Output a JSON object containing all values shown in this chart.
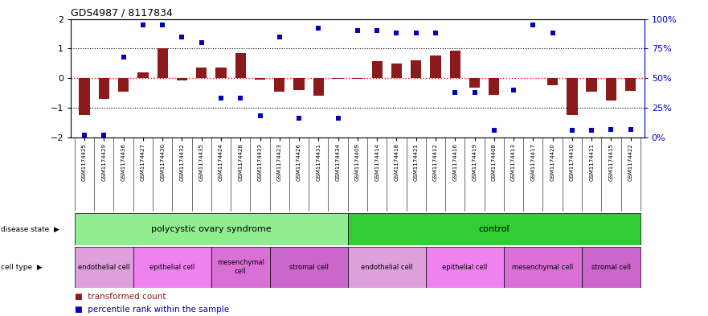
{
  "title": "GDS4987 / 8117834",
  "samples": [
    "GSM1174425",
    "GSM1174429",
    "GSM1174436",
    "GSM1174427",
    "GSM1174430",
    "GSM1174432",
    "GSM1174435",
    "GSM1174424",
    "GSM1174428",
    "GSM1174433",
    "GSM1174423",
    "GSM1174426",
    "GSM1174431",
    "GSM1174434",
    "GSM1174409",
    "GSM1174414",
    "GSM1174418",
    "GSM1174421",
    "GSM1174412",
    "GSM1174416",
    "GSM1174419",
    "GSM1174408",
    "GSM1174413",
    "GSM1174417",
    "GSM1174420",
    "GSM1174410",
    "GSM1174411",
    "GSM1174415",
    "GSM1174422"
  ],
  "bar_values": [
    -1.25,
    -0.7,
    -0.45,
    0.2,
    1.0,
    -0.08,
    0.35,
    0.35,
    0.85,
    -0.05,
    -0.45,
    -0.4,
    -0.6,
    -0.02,
    -0.02,
    0.58,
    0.5,
    0.6,
    0.78,
    0.92,
    -0.32,
    -0.55,
    0.0,
    0.02,
    -0.25,
    -1.25,
    -0.45,
    -0.75,
    -0.42
  ],
  "percentile_values": [
    2,
    2,
    68,
    95,
    95,
    85,
    80,
    33,
    33,
    18,
    85,
    16,
    92,
    16,
    90,
    90,
    88,
    88,
    88,
    38,
    38,
    6,
    40,
    95,
    88,
    6,
    6,
    7,
    7
  ],
  "bar_color": "#8B1A1A",
  "scatter_color": "#0000BB",
  "right_yaxis_color": "#0000CC",
  "ylim_left": [
    -2,
    2
  ],
  "ylim_right": [
    0,
    100
  ],
  "disease_groups": [
    {
      "label": "polycystic ovary syndrome",
      "start": 0,
      "end": 14,
      "color": "#90EE90"
    },
    {
      "label": "control",
      "start": 14,
      "end": 29,
      "color": "#32CD32"
    }
  ],
  "cell_type_groups": [
    {
      "label": "endothelial cell",
      "start": 0,
      "end": 3,
      "color": "#DDA0DD"
    },
    {
      "label": "epithelial cell",
      "start": 3,
      "end": 7,
      "color": "#EE82EE"
    },
    {
      "label": "mesenchymal\ncell",
      "start": 7,
      "end": 10,
      "color": "#DA70D6"
    },
    {
      "label": "stromal cell",
      "start": 10,
      "end": 14,
      "color": "#CC66CC"
    },
    {
      "label": "endothelial cell",
      "start": 14,
      "end": 18,
      "color": "#DDA0DD"
    },
    {
      "label": "epithelial cell",
      "start": 18,
      "end": 22,
      "color": "#EE82EE"
    },
    {
      "label": "mesenchymal cell",
      "start": 22,
      "end": 26,
      "color": "#DA70D6"
    },
    {
      "label": "stromal cell",
      "start": 26,
      "end": 29,
      "color": "#CC66CC"
    }
  ],
  "legend_bar_label": "transformed count",
  "legend_scatter_label": "percentile rank within the sample",
  "disease_state_row_label": "disease state",
  "cell_type_row_label": "cell type"
}
